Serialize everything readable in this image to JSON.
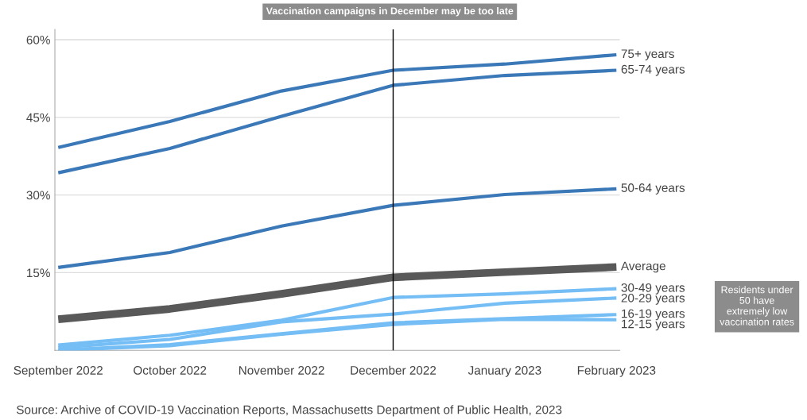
{
  "chart_data": {
    "type": "line",
    "title": "Vaccination campaigns in December may be too late",
    "categories": [
      "September 2022",
      "October 2022",
      "November 2022",
      "December 2022",
      "January 2023",
      "February 2023"
    ],
    "series": [
      {
        "name": "75+ years",
        "color": "#3a78b8",
        "values": [
          39.2,
          44.2,
          50.1,
          54.1,
          55.3,
          57.1
        ]
      },
      {
        "name": "65-74 years",
        "color": "#3a78b8",
        "values": [
          34.3,
          39.0,
          45.2,
          51.2,
          53.1,
          54.1
        ]
      },
      {
        "name": "50-64 years",
        "color": "#3a78b8",
        "values": [
          16.0,
          18.9,
          24.0,
          28.0,
          30.1,
          31.2
        ]
      },
      {
        "name": "Average",
        "color": "#595959",
        "values": [
          6.0,
          8.0,
          10.9,
          14.1,
          15.1,
          16.1
        ]
      },
      {
        "name": "30-49 years",
        "color": "#74bdf5",
        "values": [
          1.0,
          2.9,
          5.8,
          10.2,
          10.9,
          11.9
        ]
      },
      {
        "name": "20-29 years",
        "color": "#74bdf5",
        "values": [
          0.5,
          2.1,
          5.5,
          7.0,
          9.1,
          10.1
        ]
      },
      {
        "name": "16-19 years",
        "color": "#74bdf5",
        "values": [
          0.0,
          1.1,
          3.2,
          5.3,
          6.1,
          6.9
        ]
      },
      {
        "name": "12-15 years",
        "color": "#74bdf5",
        "values": [
          0.0,
          0.9,
          3.1,
          5.0,
          6.0,
          5.9
        ]
      }
    ],
    "ylim": [
      0,
      62
    ],
    "yticks": [
      {
        "value": 15,
        "label": "15%"
      },
      {
        "value": 30,
        "label": "30%"
      },
      {
        "value": 45,
        "label": "45%"
      },
      {
        "value": 60,
        "label": "60%"
      }
    ],
    "grid": "y",
    "legend": false,
    "marker": "none",
    "line_style": "solid",
    "ref_lines": [
      {
        "axis": "x",
        "value": "December 2022",
        "color": "#000000"
      }
    ],
    "annotations": [
      "Residents under 50 have extremely low vaccination rates",
      "Source: Archive of COVID-19 Vaccination Reports, Massachusetts Department of Public Health, 2023"
    ]
  }
}
